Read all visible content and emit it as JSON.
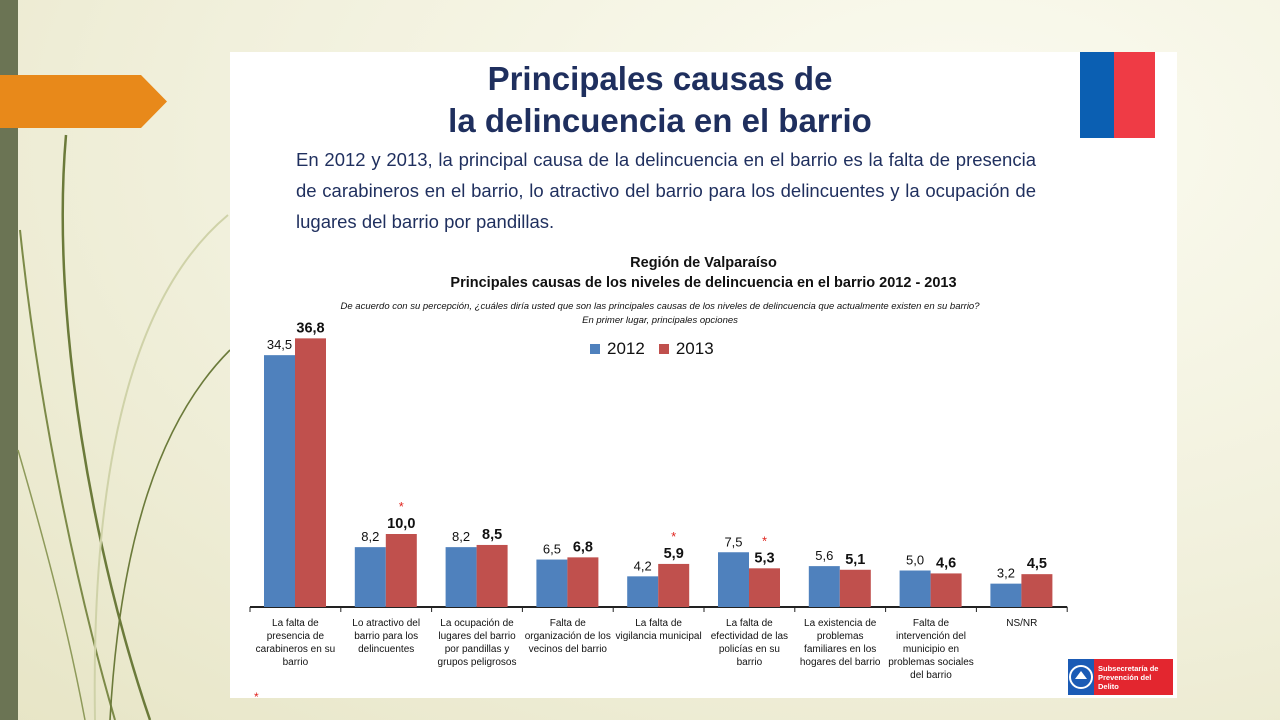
{
  "title": {
    "line1": "Principales causas de",
    "line2": "la delincuencia en el barrio"
  },
  "intro": "En 2012 y 2013, la principal causa de la delincuencia en el barrio es la falta de presencia de carabineros en el barrio, lo atractivo del barrio para los delincuentes y la ocupación de lugares del barrio por pandillas.",
  "colors": {
    "series_2012": "#4f81bd",
    "series_2013": "#c0504d",
    "title": "#1f2f5e",
    "star": "#e0231d",
    "orange_arrow": "#e8891a",
    "flag_blue": "#0b5fb2",
    "flag_red": "#ef3b45"
  },
  "chart_data": {
    "type": "bar",
    "title": "Región de Valparaíso",
    "subtitle": "Principales causas de los niveles de delincuencia en el barrio 2012 - 2013",
    "question": "De acuerdo con su percepción, ¿cuáles diría usted que son las principales causas de los niveles de delincuencia que actualmente existen en su barrio?",
    "question_note": "En primer lugar, principales opciones",
    "legend_position": "top",
    "ylim": [
      0,
      40
    ],
    "categories": [
      "La falta de presencia de carabineros en su barrio",
      "Lo atractivo del barrio para los delincuentes",
      "La ocupación de lugares del barrio por pandillas y grupos peligrosos",
      "Falta de organización de los vecinos del barrio",
      "La falta de vigilancia municipal",
      "La falta de efectividad de las policías en su barrio",
      "La existencia de problemas familiares en los hogares del barrio",
      "Falta de intervención del municipio en problemas sociales del barrio",
      "NS/NR"
    ],
    "series": [
      {
        "name": "2012",
        "values": [
          34.5,
          8.2,
          8.2,
          6.5,
          4.2,
          7.5,
          5.6,
          5.0,
          3.2
        ],
        "labels": [
          "34,5",
          "8,2",
          "8,2",
          "6,5",
          "4,2",
          "7,5",
          "5,6",
          "5,0",
          "3,2"
        ]
      },
      {
        "name": "2013",
        "values": [
          36.8,
          10.0,
          8.5,
          6.8,
          5.9,
          5.3,
          5.1,
          4.6,
          4.5
        ],
        "labels": [
          "36,8",
          "10,0",
          "8,5",
          "6,8",
          "5,9",
          "5,3",
          "5,1",
          "4,6",
          "4,5"
        ]
      }
    ],
    "significance_marker": "*",
    "significant_2013": [
      false,
      true,
      false,
      false,
      true,
      true,
      false,
      false,
      false
    ]
  },
  "footnote": "*",
  "logo": {
    "text": "Subsecretaría de Prevención del Delito"
  }
}
